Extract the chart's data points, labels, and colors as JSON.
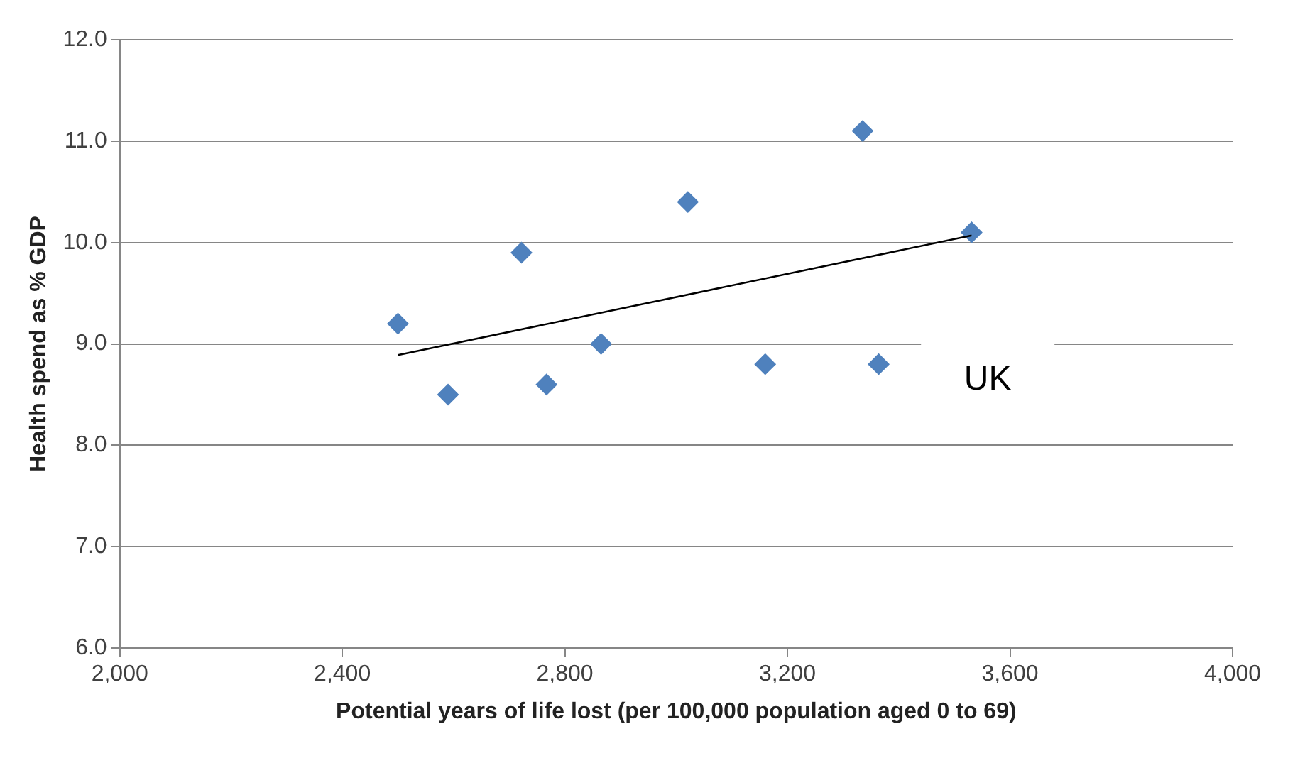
{
  "chart_data": {
    "type": "scatter",
    "xlabel": "Potential years of life lost (per 100,000 population aged 0 to 69)",
    "ylabel": "Health spend as % GDP",
    "x": [
      2500,
      2590,
      2722,
      2767,
      2865,
      3021,
      3335,
      3160,
      3364,
      3531
    ],
    "series": [
      {
        "color": "#4f81bd",
        "values": [
          9.2,
          8.5,
          9.9,
          8.6,
          9.0,
          10.4,
          11.1,
          8.8,
          8.8,
          10.1
        ]
      },
      {
        "type": "line",
        "marker": "none",
        "color": "#000000",
        "x": [
          2500,
          3531
        ],
        "values": [
          8.89,
          10.07
        ]
      }
    ],
    "xlim": [
      2000,
      4000
    ],
    "xticks": [
      {
        "value": 2000,
        "label": "2,000"
      },
      {
        "value": 2400,
        "label": "2,400"
      },
      {
        "value": 2800,
        "label": "2,800"
      },
      {
        "value": 3200,
        "label": "3,200"
      },
      {
        "value": 3600,
        "label": "3,600"
      },
      {
        "value": 4000,
        "label": "4,000"
      }
    ],
    "ylim": [
      6,
      12
    ],
    "yticks": [
      {
        "value": 6,
        "label": "6.0"
      },
      {
        "value": 7,
        "label": "7.0"
      },
      {
        "value": 8,
        "label": "8.0"
      },
      {
        "value": 9,
        "label": "9.0"
      },
      {
        "value": 10,
        "label": "10.0"
      },
      {
        "value": 11,
        "label": "11.0"
      },
      {
        "value": 12,
        "label": "12.0"
      }
    ],
    "annotations": [
      "UK"
    ],
    "grid": "y",
    "legend": false,
    "marker": "diamond"
  }
}
